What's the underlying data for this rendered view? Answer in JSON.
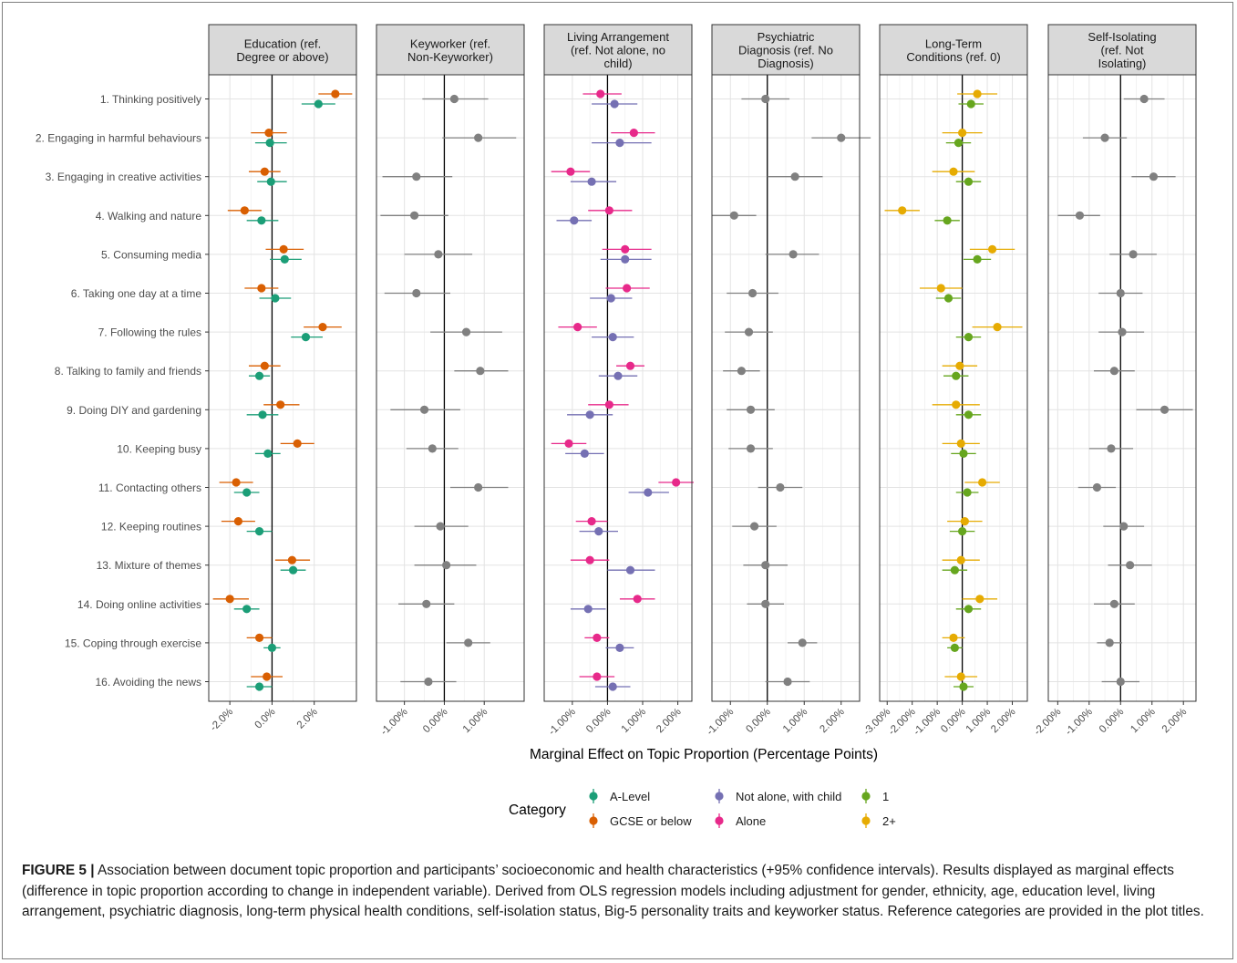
{
  "chart_data": {
    "type": "scatter",
    "subtype": "dot-and-whisker, faceted",
    "xlabel": "Marginal Effect on Topic Proportion (Percentage Points)",
    "categories": [
      "1. Thinking positively",
      "2. Engaging in harmful behaviours",
      "3. Engaging in creative activities",
      "4. Walking and nature",
      "5. Consuming media",
      "6. Taking one day at a time",
      "7. Following the rules",
      "8. Talking to family and friends",
      "9. Doing DIY and gardening",
      "10. Keeping busy",
      "11. Contacting others",
      "12. Keeping routines",
      "13. Mixture of themes",
      "14. Doing online activities",
      "15. Coping through exercise",
      "16. Avoiding the news"
    ],
    "grid": true,
    "legend": {
      "title": "Category",
      "placement": "bottom",
      "entries": [
        {
          "label": "A-Level",
          "color": "#1b9e77"
        },
        {
          "label": "GCSE or below",
          "color": "#d95f02"
        },
        {
          "label": "Not alone, with child",
          "color": "#7570b3"
        },
        {
          "label": "Alone",
          "color": "#e7298a"
        },
        {
          "label": "1",
          "color": "#66a61e"
        },
        {
          "label": "2+",
          "color": "#e6ab02"
        }
      ]
    },
    "facets": [
      {
        "title_lines": [
          "Education (ref.",
          "Degree or above)"
        ],
        "xlim": [
          -3.0,
          4.0
        ],
        "ticks": [
          -2,
          0,
          2
        ],
        "tick_labels": [
          "-2.0%",
          "0.0%",
          "2.0%"
        ],
        "series": [
          {
            "name": "GCSE or below",
            "color": "#d95f02",
            "offset": -1,
            "points": [
              [
                3.0,
                2.2,
                3.8
              ],
              [
                -0.15,
                -1.0,
                0.7
              ],
              [
                -0.35,
                -1.1,
                0.4
              ],
              [
                -1.3,
                -2.1,
                -0.5
              ],
              [
                0.55,
                -0.3,
                1.5
              ],
              [
                -0.5,
                -1.3,
                0.3
              ],
              [
                2.4,
                1.5,
                3.3
              ],
              [
                -0.35,
                -1.1,
                0.4
              ],
              [
                0.4,
                -0.4,
                1.3
              ],
              [
                1.2,
                0.4,
                2.0
              ],
              [
                -1.7,
                -2.5,
                -0.9
              ],
              [
                -1.6,
                -2.4,
                -0.8
              ],
              [
                0.95,
                0.15,
                1.8
              ],
              [
                -2.0,
                -2.8,
                -1.1
              ],
              [
                -0.6,
                -1.2,
                0.0
              ],
              [
                -0.25,
                -1.0,
                0.5
              ]
            ]
          },
          {
            "name": "A-Level",
            "color": "#1b9e77",
            "offset": 1,
            "points": [
              [
                2.2,
                1.4,
                3.0
              ],
              [
                -0.1,
                -0.8,
                0.7
              ],
              [
                -0.05,
                -0.7,
                0.7
              ],
              [
                -0.5,
                -1.2,
                0.3
              ],
              [
                0.6,
                -0.1,
                1.4
              ],
              [
                0.15,
                -0.6,
                0.9
              ],
              [
                1.6,
                0.9,
                2.4
              ],
              [
                -0.6,
                -1.1,
                -0.1
              ],
              [
                -0.45,
                -1.2,
                0.3
              ],
              [
                -0.2,
                -0.8,
                0.4
              ],
              [
                -1.2,
                -1.8,
                -0.6
              ],
              [
                -0.6,
                -1.2,
                0.0
              ],
              [
                1.0,
                0.4,
                1.6
              ],
              [
                -1.2,
                -1.8,
                -0.6
              ],
              [
                0.0,
                -0.4,
                0.4
              ],
              [
                -0.6,
                -1.2,
                0.0
              ]
            ]
          }
        ]
      },
      {
        "title_lines": [
          "Keyworker (ref.",
          "Non-Keyworker)"
        ],
        "xlim": [
          -1.7,
          2.0
        ],
        "ticks": [
          -1,
          0,
          1
        ],
        "tick_labels": [
          "-1.00%",
          "0.00%",
          "1.00%"
        ],
        "series": [
          {
            "name": "Keyworker",
            "color": "#808080",
            "offset": 0,
            "points": [
              [
                0.25,
                -0.55,
                1.1
              ],
              [
                0.85,
                -0.05,
                1.8
              ],
              [
                -0.7,
                -1.55,
                0.2
              ],
              [
                -0.75,
                -1.6,
                0.1
              ],
              [
                -0.15,
                -1.0,
                0.7
              ],
              [
                -0.7,
                -1.5,
                0.15
              ],
              [
                0.55,
                -0.35,
                1.45
              ],
              [
                0.9,
                0.25,
                1.6
              ],
              [
                -0.5,
                -1.35,
                0.4
              ],
              [
                -0.3,
                -0.95,
                0.35
              ],
              [
                0.85,
                0.15,
                1.6
              ],
              [
                -0.1,
                -0.75,
                0.6
              ],
              [
                0.05,
                -0.75,
                0.8
              ],
              [
                -0.45,
                -1.15,
                0.25
              ],
              [
                0.6,
                0.05,
                1.15
              ],
              [
                -0.4,
                -1.1,
                0.3
              ]
            ]
          }
        ]
      },
      {
        "title_lines": [
          "Living Arrangement",
          "(ref. Not alone, no",
          "child)"
        ],
        "xlim": [
          -1.8,
          2.4
        ],
        "ticks": [
          -1,
          0,
          1,
          2
        ],
        "tick_labels": [
          "-1.00%",
          "0.00%",
          "1.00%",
          "2.00%"
        ],
        "series": [
          {
            "name": "Alone",
            "color": "#e7298a",
            "offset": -1,
            "points": [
              [
                -0.2,
                -0.7,
                0.4
              ],
              [
                0.75,
                0.1,
                1.35
              ],
              [
                -1.05,
                -1.6,
                -0.5
              ],
              [
                0.05,
                -0.55,
                0.7
              ],
              [
                0.5,
                -0.15,
                1.25
              ],
              [
                0.55,
                -0.05,
                1.2
              ],
              [
                -0.85,
                -1.4,
                -0.3
              ],
              [
                0.65,
                0.25,
                1.05
              ],
              [
                0.05,
                -0.55,
                0.6
              ],
              [
                -1.1,
                -1.6,
                -0.6
              ],
              [
                1.95,
                1.45,
                2.45
              ],
              [
                -0.45,
                -0.9,
                0.0
              ],
              [
                -0.5,
                -1.05,
                0.05
              ],
              [
                0.85,
                0.35,
                1.35
              ],
              [
                -0.3,
                -0.65,
                0.05
              ],
              [
                -0.3,
                -0.8,
                0.2
              ]
            ]
          },
          {
            "name": "Not alone, with child",
            "color": "#7570b3",
            "offset": 1,
            "points": [
              [
                0.2,
                -0.45,
                0.85
              ],
              [
                0.35,
                -0.45,
                1.25
              ],
              [
                -0.45,
                -1.05,
                0.25
              ],
              [
                -0.95,
                -1.45,
                -0.45
              ],
              [
                0.5,
                -0.2,
                1.25
              ],
              [
                0.1,
                -0.5,
                0.7
              ],
              [
                0.15,
                -0.45,
                0.75
              ],
              [
                0.3,
                -0.25,
                0.85
              ],
              [
                -0.5,
                -1.15,
                0.15
              ],
              [
                -0.65,
                -1.2,
                -0.1
              ],
              [
                1.15,
                0.6,
                1.75
              ],
              [
                -0.25,
                -0.8,
                0.3
              ],
              [
                0.65,
                0.0,
                1.35
              ],
              [
                -0.55,
                -1.05,
                -0.05
              ],
              [
                0.35,
                -0.05,
                0.75
              ],
              [
                0.15,
                -0.35,
                0.65
              ]
            ]
          }
        ]
      },
      {
        "title_lines": [
          "Psychiatric",
          "Diagnosis (ref. No",
          "Diagnosis)"
        ],
        "xlim": [
          -1.5,
          2.5
        ],
        "ticks": [
          -1,
          0,
          1,
          2
        ],
        "tick_labels": [
          "-1.00%",
          "0.00%",
          "1.00%",
          "2.00%"
        ],
        "series": [
          {
            "name": "Psychiatric Diagnosis",
            "color": "#808080",
            "offset": 0,
            "points": [
              [
                -0.05,
                -0.7,
                0.6
              ],
              [
                2.0,
                1.2,
                2.8
              ],
              [
                0.75,
                0.0,
                1.5
              ],
              [
                -0.9,
                -1.5,
                -0.3
              ],
              [
                0.7,
                -0.05,
                1.4
              ],
              [
                -0.4,
                -1.1,
                0.3
              ],
              [
                -0.5,
                -1.15,
                0.15
              ],
              [
                -0.7,
                -1.2,
                -0.2
              ],
              [
                -0.45,
                -1.1,
                0.2
              ],
              [
                -0.45,
                -1.05,
                0.15
              ],
              [
                0.35,
                -0.25,
                0.95
              ],
              [
                -0.35,
                -0.95,
                0.25
              ],
              [
                -0.05,
                -0.65,
                0.55
              ],
              [
                -0.05,
                -0.55,
                0.45
              ],
              [
                0.95,
                0.55,
                1.35
              ],
              [
                0.55,
                -0.05,
                1.15
              ]
            ]
          }
        ]
      },
      {
        "title_lines": [
          "Long-Term",
          "Conditions (ref. 0)"
        ],
        "xlim": [
          -3.3,
          2.6
        ],
        "ticks": [
          -3,
          -2,
          -1,
          0,
          1,
          2
        ],
        "tick_labels": [
          "-3.00%",
          "-2.00%",
          "-1.00%",
          "0.00%",
          "1.00%",
          "2.00%"
        ],
        "series": [
          {
            "name": "2+",
            "color": "#e6ab02",
            "offset": -1,
            "points": [
              [
                0.6,
                -0.2,
                1.4
              ],
              [
                0.0,
                -0.8,
                0.8
              ],
              [
                -0.35,
                -1.2,
                0.5
              ],
              [
                -2.4,
                -3.1,
                -1.7
              ],
              [
                1.2,
                0.3,
                2.1
              ],
              [
                -0.85,
                -1.7,
                0.0
              ],
              [
                1.4,
                0.4,
                2.4
              ],
              [
                -0.1,
                -0.8,
                0.6
              ],
              [
                -0.25,
                -1.2,
                0.7
              ],
              [
                -0.05,
                -0.8,
                0.7
              ],
              [
                0.8,
                0.1,
                1.5
              ],
              [
                0.1,
                -0.6,
                0.8
              ],
              [
                -0.05,
                -0.8,
                0.7
              ],
              [
                0.7,
                0.0,
                1.4
              ],
              [
                -0.35,
                -0.8,
                0.1
              ],
              [
                -0.05,
                -0.7,
                0.6
              ]
            ]
          },
          {
            "name": "1",
            "color": "#66a61e",
            "offset": 1,
            "points": [
              [
                0.35,
                -0.15,
                0.85
              ],
              [
                -0.15,
                -0.65,
                0.35
              ],
              [
                0.25,
                -0.25,
                0.75
              ],
              [
                -0.6,
                -1.1,
                -0.1
              ],
              [
                0.6,
                0.05,
                1.15
              ],
              [
                -0.55,
                -1.05,
                -0.05
              ],
              [
                0.25,
                -0.25,
                0.75
              ],
              [
                -0.25,
                -0.75,
                0.25
              ],
              [
                0.25,
                -0.25,
                0.75
              ],
              [
                0.05,
                -0.45,
                0.55
              ],
              [
                0.2,
                -0.25,
                0.65
              ],
              [
                0.0,
                -0.5,
                0.5
              ],
              [
                -0.3,
                -0.8,
                0.2
              ],
              [
                0.25,
                -0.25,
                0.75
              ],
              [
                -0.3,
                -0.6,
                0.0
              ],
              [
                0.05,
                -0.35,
                0.45
              ]
            ]
          }
        ]
      },
      {
        "title_lines": [
          "Self-Isolating",
          "(ref. Not",
          "Isolating)"
        ],
        "xlim": [
          -2.3,
          2.4
        ],
        "ticks": [
          -2,
          -1,
          0,
          1,
          2
        ],
        "tick_labels": [
          "-2.00%",
          "-1.00%",
          "0.00%",
          "1.00%",
          "2.00%"
        ],
        "series": [
          {
            "name": "Self-Isolating",
            "color": "#808080",
            "offset": 0,
            "points": [
              [
                0.75,
                0.1,
                1.4
              ],
              [
                -0.5,
                -1.2,
                0.2
              ],
              [
                1.05,
                0.35,
                1.75
              ],
              [
                -1.3,
                -2.0,
                -0.65
              ],
              [
                0.4,
                -0.35,
                1.15
              ],
              [
                0.0,
                -0.7,
                0.7
              ],
              [
                0.05,
                -0.7,
                0.75
              ],
              [
                -0.2,
                -0.85,
                0.45
              ],
              [
                1.4,
                0.5,
                2.3
              ],
              [
                -0.3,
                -1.0,
                0.4
              ],
              [
                -0.75,
                -1.35,
                -0.15
              ],
              [
                0.1,
                -0.55,
                0.75
              ],
              [
                0.3,
                -0.4,
                1.0
              ],
              [
                -0.2,
                -0.85,
                0.45
              ],
              [
                -0.35,
                -0.75,
                0.05
              ],
              [
                0.0,
                -0.6,
                0.6
              ]
            ]
          }
        ]
      }
    ]
  },
  "caption": {
    "label": "FIGURE 5 |",
    "text": " Association between document topic proportion and participants’ socioeconomic and health characteristics (+95% confidence intervals). Results displayed as marginal effects (difference in topic proportion according to change in independent variable). Derived from OLS regression models including adjustment for gender, ethnicity, age, education level, living arrangement, psychiatric diagnosis, long-term physical health conditions, self-isolation status, Big-5 personality traits and keyworker status. Reference categories are provided in the plot titles."
  }
}
